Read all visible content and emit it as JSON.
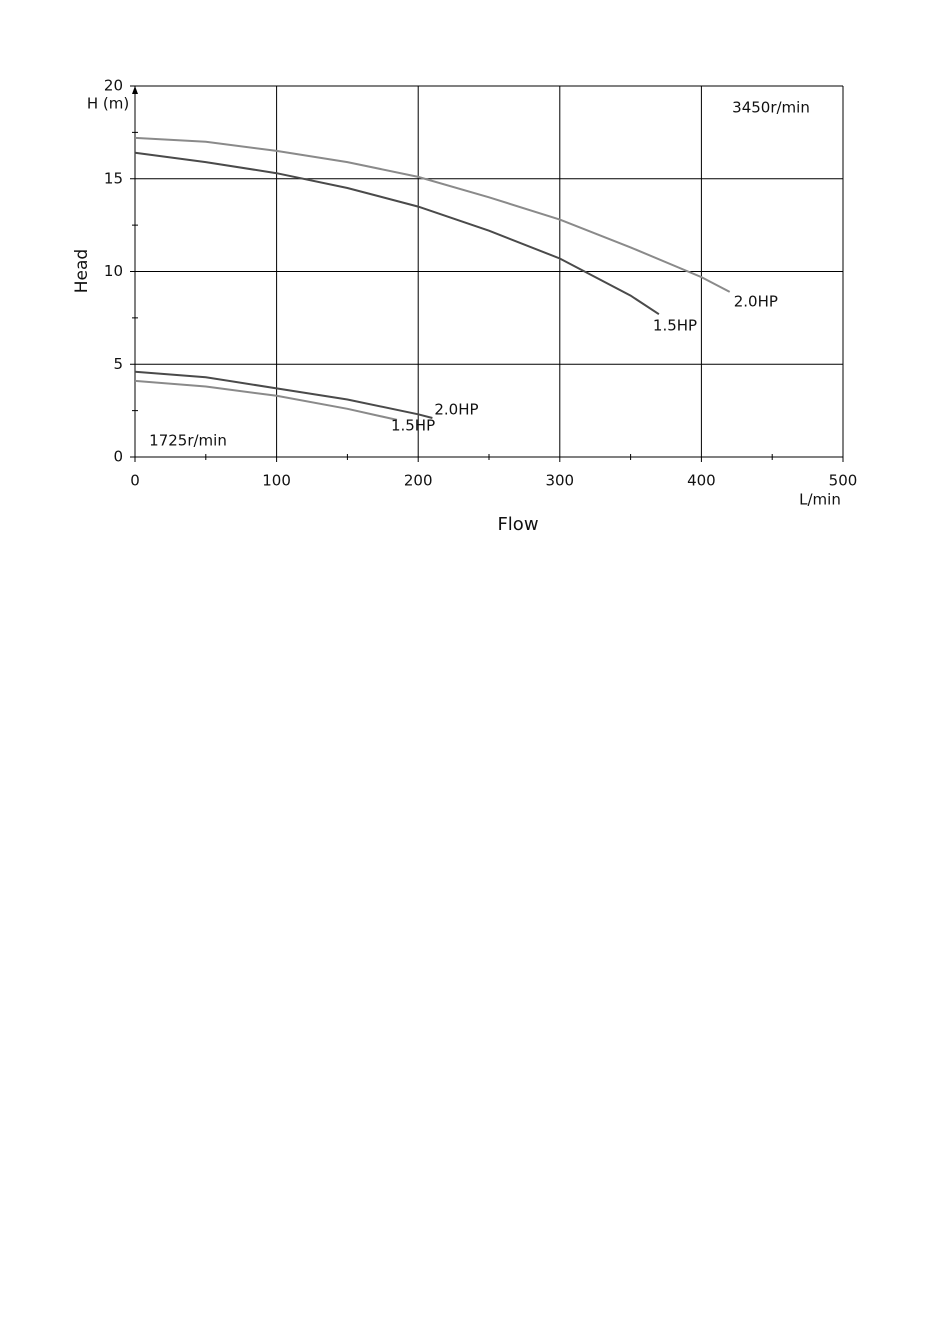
{
  "chart_data": {
    "type": "line",
    "y_label": "Head",
    "x_label": "Flow",
    "y_unit": "H (m)",
    "x_unit": "L/min",
    "annotations": [
      "3450r/min",
      "1725r/min"
    ],
    "xlim": [
      0,
      500
    ],
    "ylim": [
      0,
      20
    ],
    "xticks": [
      0,
      100,
      200,
      300,
      400,
      500
    ],
    "yticks": [
      0,
      5,
      10,
      15,
      20
    ],
    "xminorticks": [
      50,
      150,
      250,
      350,
      450
    ],
    "yminorticks": [
      2.5,
      7.5,
      12.5,
      17.5
    ],
    "grid": true,
    "series": [
      {
        "name": "2.0HP",
        "color": "#8a8a8a",
        "x": [
          0,
          50,
          100,
          150,
          200,
          250,
          300,
          350,
          400,
          420
        ],
        "values": [
          17.2,
          17.0,
          16.5,
          15.9,
          15.1,
          14.0,
          12.8,
          11.3,
          9.7,
          8.9
        ]
      },
      {
        "name": "1.5HP",
        "color": "#4a4a4a",
        "x": [
          0,
          50,
          100,
          150,
          200,
          250,
          300,
          350,
          370
        ],
        "values": [
          16.4,
          15.9,
          15.3,
          14.5,
          13.5,
          12.2,
          10.7,
          8.7,
          7.7
        ]
      },
      {
        "name": "2.0HP",
        "color": "#4a4a4a",
        "x": [
          0,
          50,
          100,
          150,
          200,
          210
        ],
        "values": [
          4.6,
          4.3,
          3.7,
          3.1,
          2.3,
          2.1
        ]
      },
      {
        "name": "1.5HP",
        "color": "#8a8a8a",
        "x": [
          0,
          50,
          100,
          150,
          185
        ],
        "values": [
          4.1,
          3.8,
          3.3,
          2.6,
          2.0
        ]
      }
    ]
  }
}
